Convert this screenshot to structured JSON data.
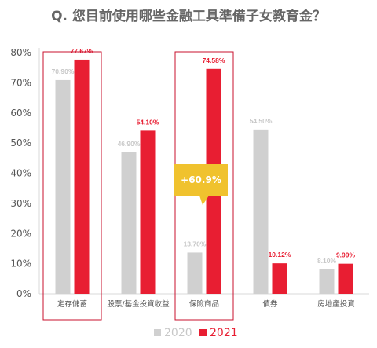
{
  "chart_data": {
    "type": "bar",
    "title": "Q. 您目前使用哪些金融工具準備子女教育金？",
    "categories": [
      "定存儲蓄",
      "股票/基金投資收益",
      "保險商品",
      "債券",
      "房地產投資"
    ],
    "series": [
      {
        "name": "2020",
        "values": [
          70.9,
          46.9,
          13.7,
          54.5,
          8.1
        ],
        "labels": [
          "70.90%",
          "46.90%",
          "13.70%",
          "54.50%",
          "8.10%"
        ],
        "color": "#d0d0d0",
        "label_color": "#c8c8c8"
      },
      {
        "name": "2021",
        "values": [
          77.67,
          54.1,
          74.58,
          10.12,
          9.99
        ],
        "labels": [
          "77.67%",
          "54.10%",
          "74.58%",
          "10.12%",
          "9.99%"
        ],
        "color": "#e81e32",
        "label_color": "#e81e32"
      }
    ],
    "yticks": [
      "0%",
      "10%",
      "20%",
      "30%",
      "40%",
      "50%",
      "60%",
      "70%",
      "80%"
    ],
    "ylim": [
      0,
      80
    ],
    "highlighted_categories": [
      "定存儲蓄",
      "保險商品"
    ],
    "highlight_color": "#c8102e",
    "callout": {
      "text": "+60.9%",
      "category": "保險商品",
      "color": "#f0c22e"
    },
    "legend_position": "bottom-center",
    "grid": false
  }
}
